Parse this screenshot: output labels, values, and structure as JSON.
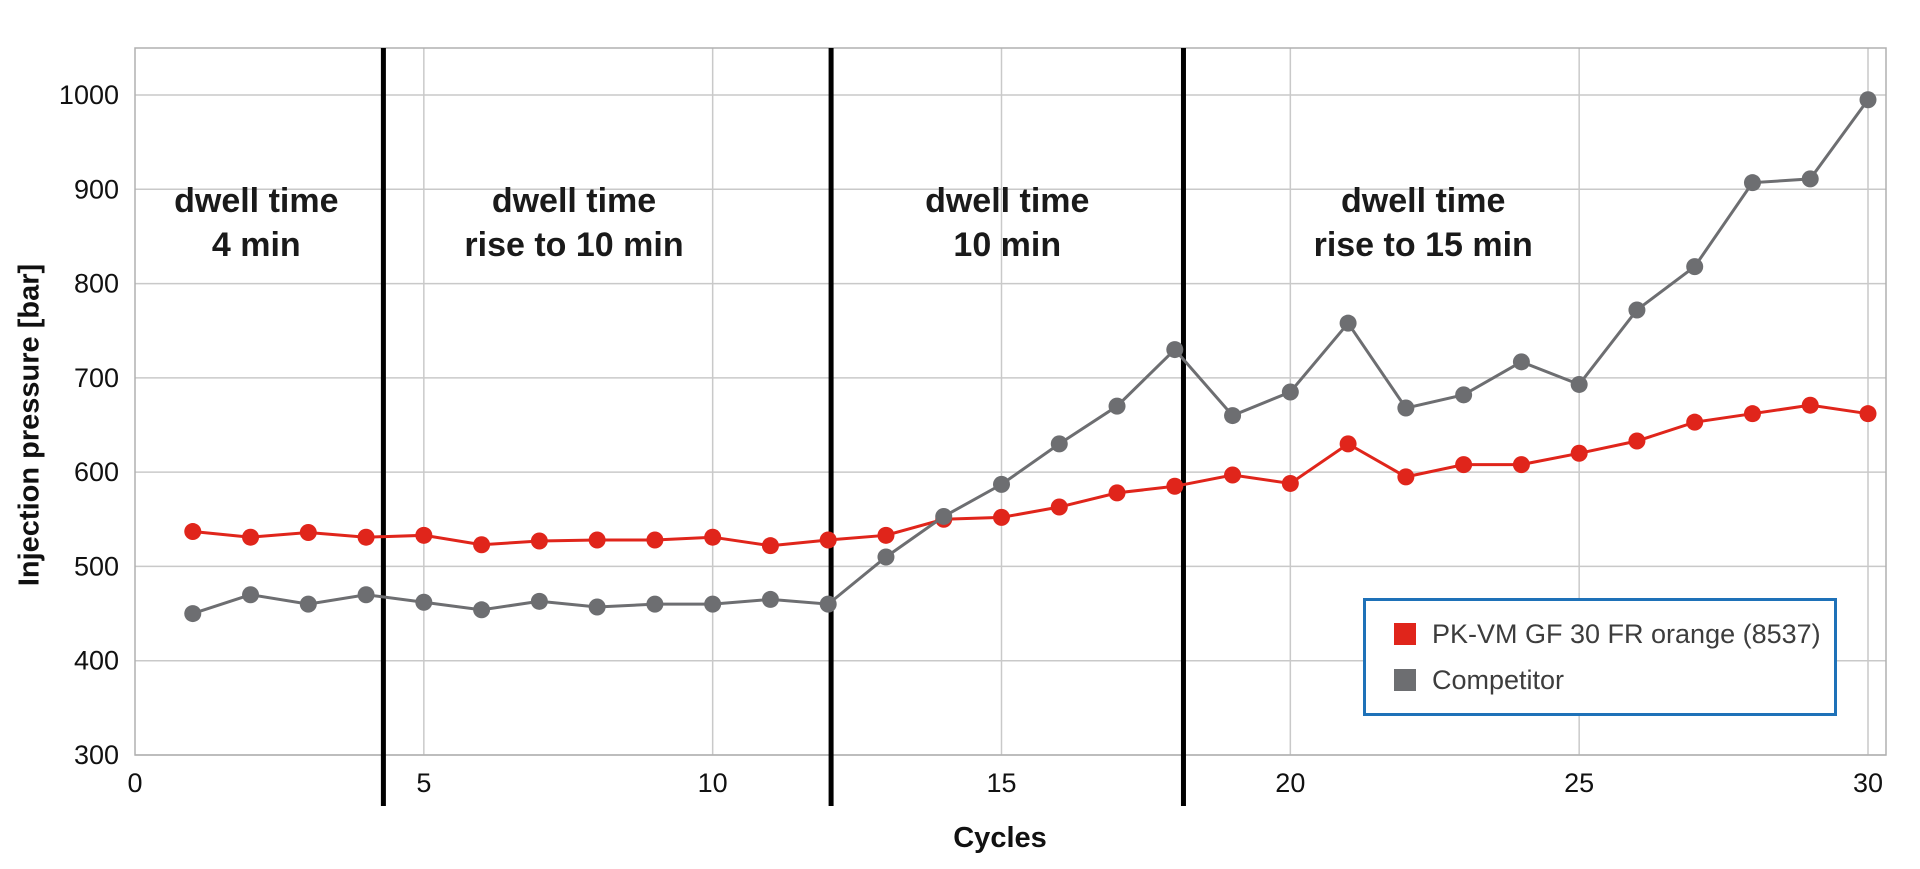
{
  "chart_data": {
    "type": "line",
    "title": "",
    "xlabel": "Cycles",
    "ylabel": "Injection pressure [bar]",
    "xlim": [
      0,
      30
    ],
    "ylim": [
      300,
      1000
    ],
    "x_ticks": [
      0,
      5,
      10,
      15,
      20,
      25,
      30
    ],
    "y_ticks": [
      300,
      400,
      500,
      600,
      700,
      800,
      900,
      1000
    ],
    "grid": true,
    "legend_position": "bottom-right",
    "colors": {
      "grid": "#c9c9c9",
      "box": "#b0b0b0",
      "divider": "#000000",
      "legend_border": "#1e71b8"
    },
    "x": [
      1,
      2,
      3,
      4,
      5,
      6,
      7,
      8,
      9,
      10,
      11,
      12,
      13,
      14,
      15,
      16,
      17,
      18,
      19,
      20,
      21,
      22,
      23,
      24,
      25,
      26,
      27,
      28,
      29,
      30
    ],
    "series": [
      {
        "name": "PK-VM GF 30 FR orange (8537)",
        "color": "#e0251b",
        "values": [
          537,
          531,
          536,
          531,
          533,
          523,
          527,
          528,
          528,
          531,
          522,
          528,
          533,
          550,
          552,
          563,
          578,
          585,
          597,
          588,
          630,
          595,
          608,
          608,
          620,
          633,
          653,
          662,
          671,
          662
        ]
      },
      {
        "name": "Competitor",
        "color": "#6d6e71",
        "values": [
          450,
          470,
          460,
          470,
          462,
          454,
          463,
          457,
          460,
          460,
          465,
          460,
          510,
          553,
          587,
          630,
          670,
          730,
          660,
          685,
          758,
          668,
          682,
          717,
          693,
          772,
          818,
          907,
          911,
          995
        ]
      }
    ],
    "dividers": [
      4.3,
      12.05,
      18.15
    ],
    "annotations": [
      {
        "lines": [
          "dwell time",
          "4 min"
        ],
        "x": 2.1,
        "y": 876
      },
      {
        "lines": [
          "dwell time",
          "rise to 10 min"
        ],
        "x": 7.6,
        "y": 876
      },
      {
        "lines": [
          "dwell time",
          "10 min"
        ],
        "x": 15.1,
        "y": 876
      },
      {
        "lines": [
          "dwell time",
          "rise to 15 min"
        ],
        "x": 22.3,
        "y": 876
      }
    ]
  }
}
